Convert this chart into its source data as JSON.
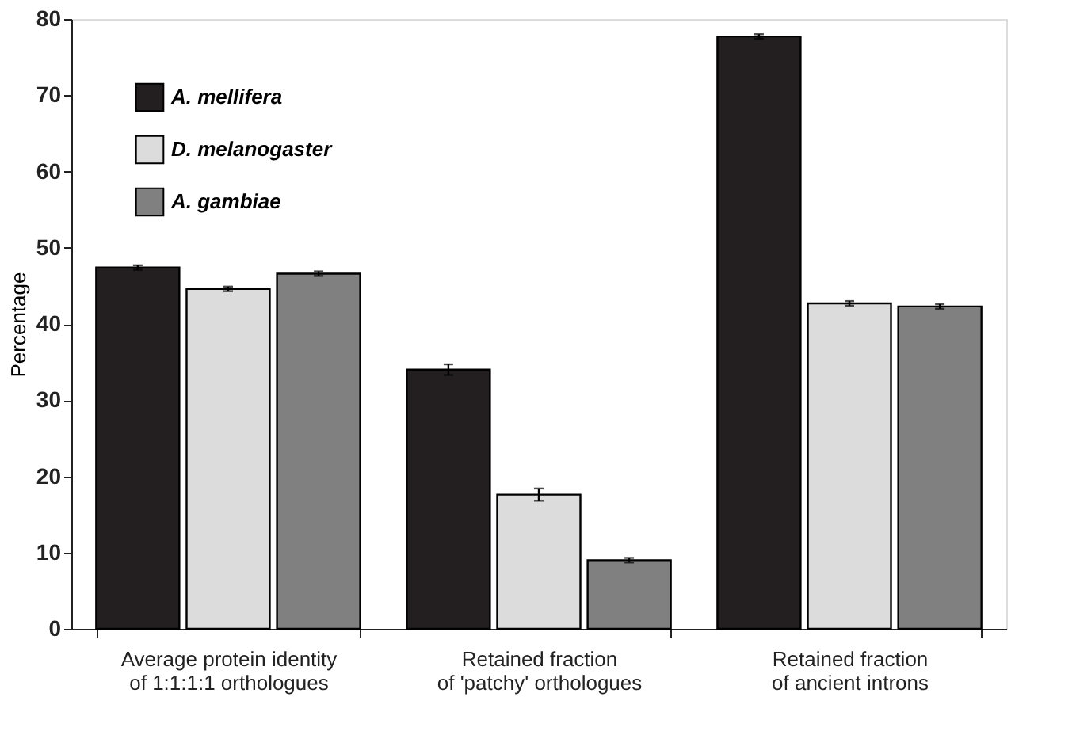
{
  "chart_data": {
    "type": "bar",
    "ylabel": "Percentage",
    "categories": [
      "Average protein identity\nof 1:1:1:1 orthologues",
      "Retained fraction\nof 'patchy' orthologues",
      "Retained fraction\nof ancient introns"
    ],
    "series": [
      {
        "name": "A. mellifera",
        "color": "#231f20",
        "values": [
          47.4,
          34.0,
          77.7
        ],
        "errors": [
          0.3,
          0.7,
          0.3
        ]
      },
      {
        "name": "D. melanogaster",
        "color": "#dcdcdc",
        "values": [
          44.6,
          17.6,
          42.7
        ],
        "errors": [
          0.3,
          0.8,
          0.3
        ]
      },
      {
        "name": "A. gambiae",
        "color": "#808080",
        "values": [
          46.6,
          9.0,
          42.3
        ],
        "errors": [
          0.3,
          0.3,
          0.3
        ]
      }
    ],
    "ylim": [
      0,
      80
    ],
    "yticks": [
      0,
      10,
      20,
      30,
      40,
      50,
      60,
      70,
      80
    ],
    "grid": false,
    "legend": "top left"
  }
}
